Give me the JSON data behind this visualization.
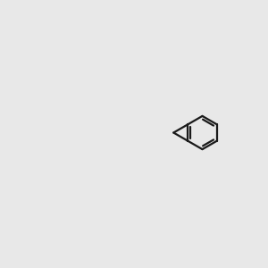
{
  "bg_color": "#e8e8e8",
  "bond_color": "#1a1a1a",
  "bond_lw": 1.6,
  "dbl_off": 0.055,
  "atom_S_color": "#b8b800",
  "atom_N_color": "#0000ee",
  "atom_O_color": "#ee0000",
  "atom_C_color": "#1a1a1a",
  "figsize": [
    3.0,
    3.0
  ],
  "dpi": 100,
  "xlim": [
    0,
    10
  ],
  "ylim": [
    0,
    10
  ]
}
